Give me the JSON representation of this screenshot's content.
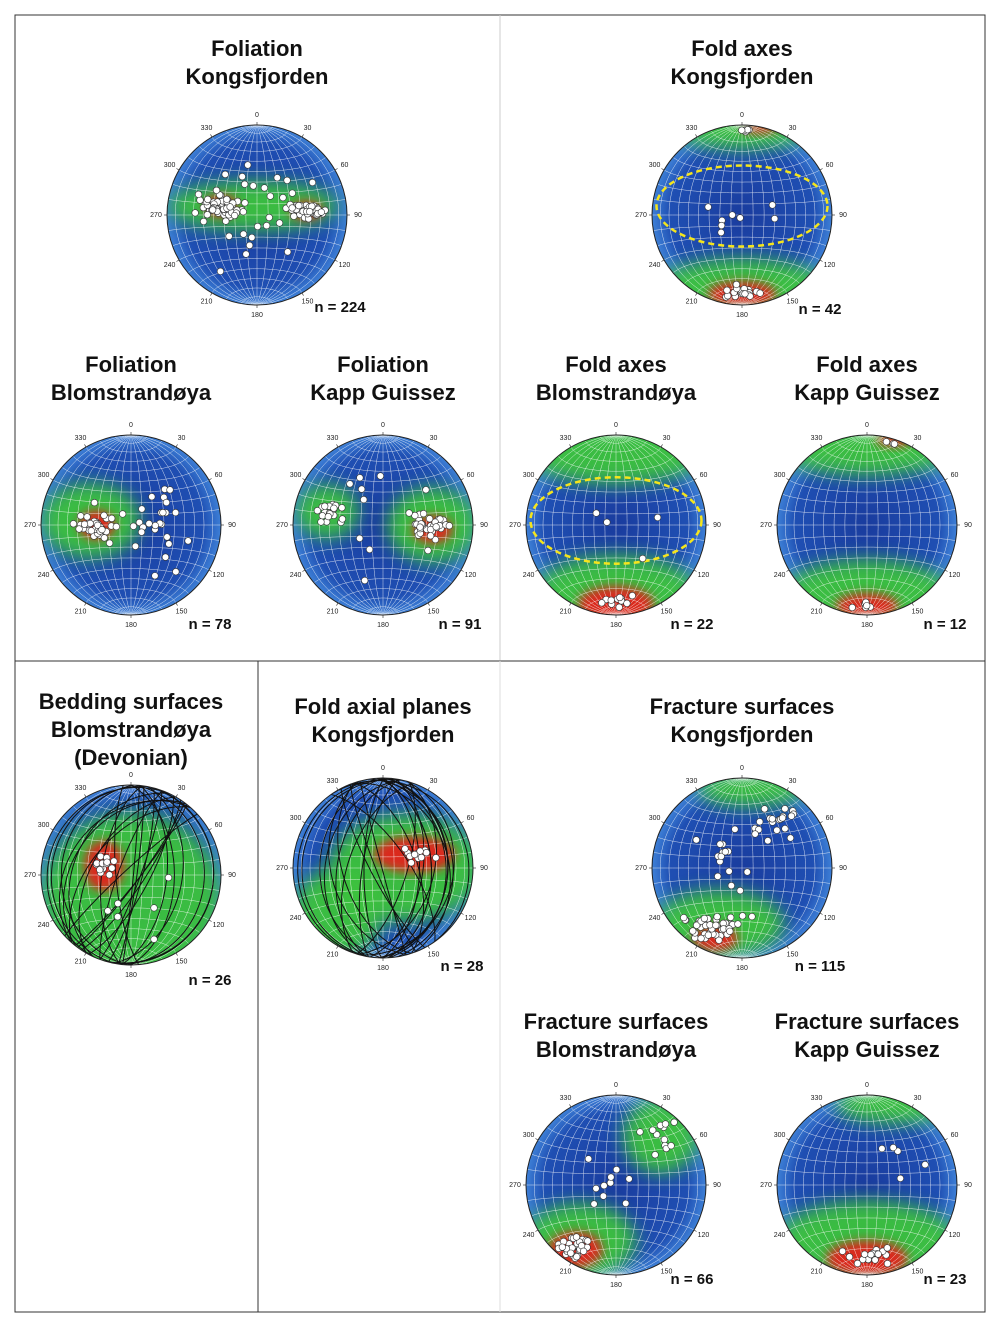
{
  "azimuth_labels": [
    "0",
    "30",
    "60",
    "90",
    "120",
    "150",
    "180",
    "210",
    "240",
    "270",
    "300",
    "330"
  ],
  "panels": [
    {
      "title": [
        "Foliation",
        "Kongsfjorden"
      ],
      "n": "n = 224"
    },
    {
      "title": [
        "Fold axes",
        "Kongsfjorden"
      ],
      "n": "n = 42"
    },
    {
      "title": [
        "Foliation",
        "Blomstrandøya"
      ],
      "n": "n = 78"
    },
    {
      "title": [
        "Foliation",
        "Kapp Guissez"
      ],
      "n": "n = 91"
    },
    {
      "title": [
        "Fold axes",
        "Blomstrandøya"
      ],
      "n": "n = 22"
    },
    {
      "title": [
        "Fold axes",
        "Kapp Guissez"
      ],
      "n": "n = 12"
    },
    {
      "title": [
        "Bedding surfaces",
        "Blomstrandøya",
        "(Devonian)"
      ],
      "n": "n = 26"
    },
    {
      "title": [
        "Fold axial planes",
        "Kongsfjorden"
      ],
      "n": "n = 28"
    },
    {
      "title": [
        "Fracture surfaces",
        "Kongsfjorden"
      ],
      "n": "n = 115"
    },
    {
      "title": [
        "Fracture surfaces",
        "Blomstrandøya"
      ],
      "n": "n = 66"
    },
    {
      "title": [
        "Fracture surfaces",
        "Kapp Guissez"
      ],
      "n": "n = 23"
    }
  ]
}
